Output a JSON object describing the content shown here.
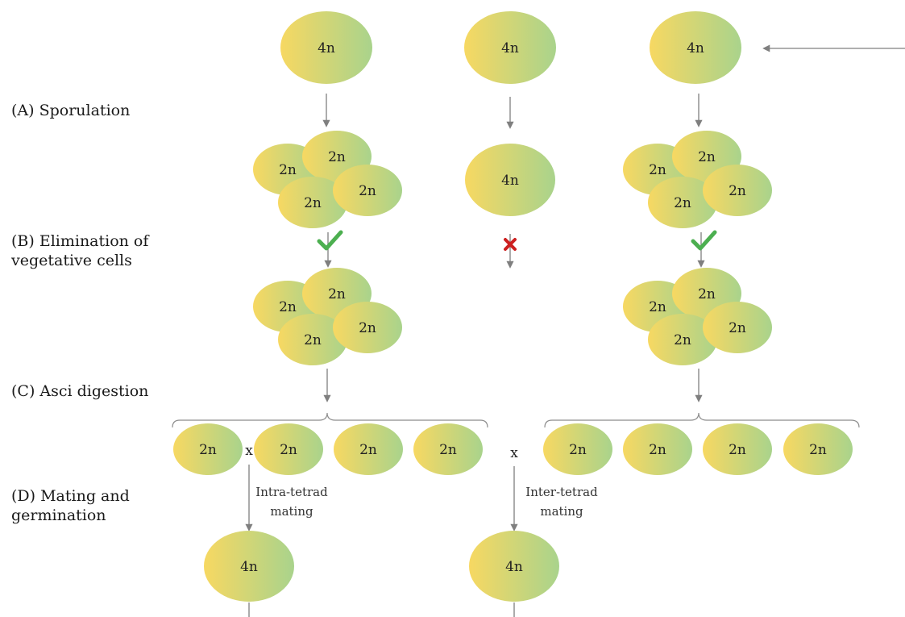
{
  "steps": {
    "a": "(A) Sporulation",
    "b_line1": "(B) Elimination of",
    "b_line2": "vegetative cells",
    "c": "(C) Asci digestion",
    "d_line1": "(D) Mating and",
    "d_line2": "germination"
  },
  "cells": {
    "tetraploid": "4n",
    "diploid": "2n"
  },
  "mating": {
    "cross_symbol": "x",
    "intra_line1": "Intra-tetrad",
    "intra_line2": "mating",
    "inter_line1": "Inter-tetrad",
    "inter_line2": "mating"
  },
  "colors": {
    "gradient_start": "#f7d862",
    "gradient_end": "#a9d38c",
    "arrow": "#7f7f7f",
    "check": "#4caf50",
    "cross": "#cc1f1f",
    "brace": "#8c8c8c"
  }
}
